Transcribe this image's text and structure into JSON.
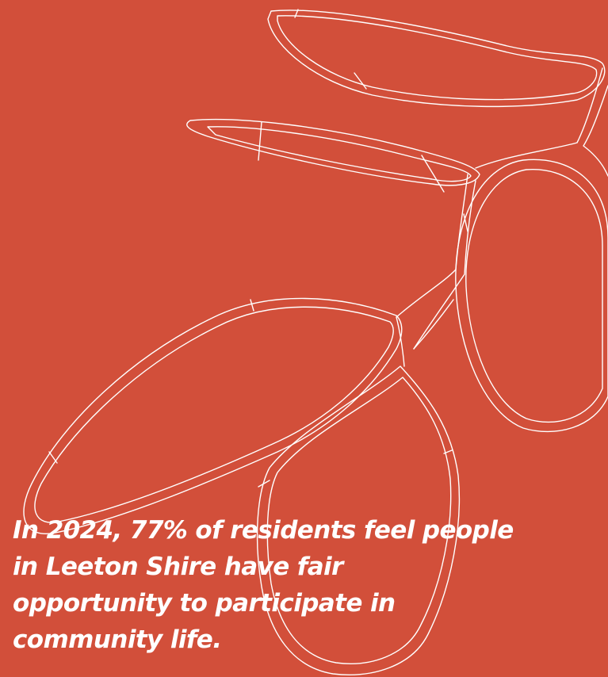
{
  "statement": {
    "lines": [
      "In 2024, 77% of residents feel people",
      "in Leeton Shire have fair",
      "opportunity to participate in",
      "community life."
    ]
  },
  "colors": {
    "background": "#d24f3a",
    "foreground": "#ffffff"
  },
  "illustration": {
    "icon": "leaf-outline-icon"
  }
}
